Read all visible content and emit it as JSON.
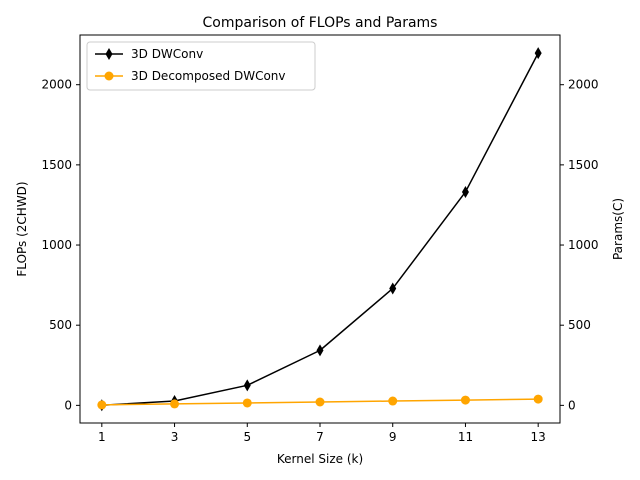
{
  "chart_data": {
    "type": "line",
    "title": "Comparison of FLOPs and Params",
    "xlabel": "Kernel Size (k)",
    "ylabel_left": "FLOPs (2CHWD)",
    "ylabel_right": "Params(C)",
    "x": [
      1,
      3,
      5,
      7,
      9,
      11,
      13
    ],
    "xticks": [
      "1",
      "3",
      "5",
      "7",
      "9",
      "11",
      "13"
    ],
    "xlim": [
      0.4,
      13.6
    ],
    "ylim": [
      -110,
      2310
    ],
    "yticks": [
      "0",
      "500",
      "1000",
      "1500",
      "2000"
    ],
    "ytick_values": [
      0,
      500,
      1000,
      1500,
      2000
    ],
    "grid": false,
    "legend_position": "top-left",
    "series": [
      {
        "name": "3D DWConv",
        "color": "#000000",
        "marker": "diamond",
        "values": [
          1,
          27,
          125,
          343,
          729,
          1331,
          2197
        ]
      },
      {
        "name": "3D Decomposed DWConv",
        "color": "#ffa500",
        "marker": "circle",
        "values": [
          3,
          9,
          15,
          21,
          27,
          33,
          39
        ]
      }
    ]
  }
}
